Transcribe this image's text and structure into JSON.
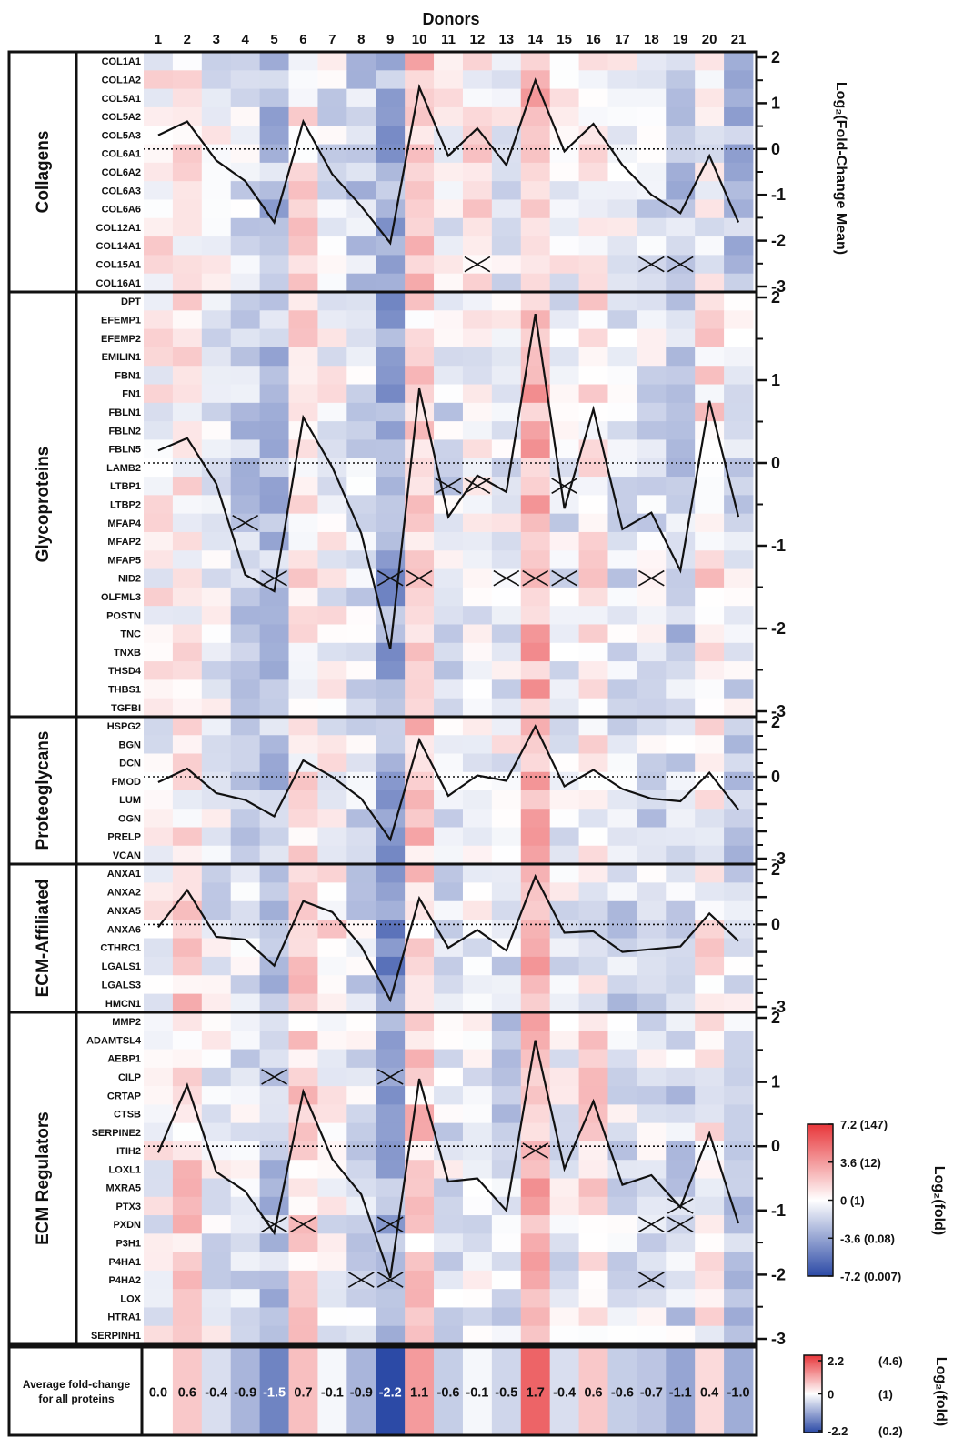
{
  "chart_data": {
    "type": "heatmap",
    "x_title": "Donors",
    "donors": [
      "1",
      "2",
      "3",
      "4",
      "5",
      "6",
      "7",
      "8",
      "9",
      "10",
      "11",
      "12",
      "13",
      "14",
      "15",
      "16",
      "17",
      "18",
      "19",
      "20",
      "21"
    ],
    "y_axis_title": "Log₂(Fold-Change Mean)",
    "heat_scale_label": "Log₂(fold)",
    "heat_scale": {
      "min": -7.2,
      "max": 7.2,
      "colors": {
        "low": "#2c4aa6",
        "mid": "#ffffff",
        "high": "#e8363a"
      }
    },
    "heat_legend": [
      {
        "text": "7.2 (147)",
        "value": 7.2
      },
      {
        "text": "3.6 (12)",
        "value": 3.6
      },
      {
        "text": "0 (1)",
        "value": 0
      },
      {
        "text": "-3.6 (0.08)",
        "value": -3.6
      },
      {
        "text": "-7.2 (0.007)",
        "value": -7.2
      }
    ],
    "categories": [
      {
        "name": "Collagens",
        "ylim": [
          -3,
          2
        ],
        "ticks": [
          "2",
          "1",
          "0",
          "-1",
          "-2",
          "-3"
        ],
        "proteins": [
          "COL1A1",
          "COL1A2",
          "COL5A1",
          "COL5A2",
          "COL5A3",
          "COL6A1",
          "COL6A2",
          "COL6A3",
          "COL6A6",
          "COL12A1",
          "COL14A1",
          "COL15A1",
          "COL16A1"
        ],
        "mean_line": [
          0.3,
          0.6,
          -0.25,
          -0.7,
          -1.6,
          0.6,
          -0.55,
          -1.25,
          -2.05,
          1.35,
          -0.15,
          0.45,
          -0.35,
          1.5,
          -0.05,
          0.55,
          -0.35,
          -1.0,
          -1.4,
          -0.15,
          -1.6
        ],
        "missing": [
          [
            11,
            11
          ],
          [
            11,
            17
          ],
          [
            11,
            18
          ]
        ]
      },
      {
        "name": "Glycoproteins",
        "ylim": [
          -3,
          2
        ],
        "ticks": [
          "2",
          "1",
          "0",
          "-1",
          "-2",
          "-3"
        ],
        "proteins": [
          "DPT",
          "EFEMP1",
          "EFEMP2",
          "EMILIN1",
          "FBN1",
          "FN1",
          "FBLN1",
          "FBLN2",
          "FBLN5",
          "LAMB2",
          "LTBP1",
          "LTBP2",
          "MFAP4",
          "MFAP2",
          "MFAP5",
          "NID2",
          "OLFML3",
          "POSTN",
          "TNC",
          "TNXB",
          "THSD4",
          "THBS1",
          "TGFBI"
        ],
        "mean_line": [
          0.15,
          0.3,
          -0.25,
          -1.35,
          -1.55,
          0.55,
          -0.05,
          -0.85,
          -2.25,
          0.9,
          -0.65,
          -0.15,
          -0.35,
          1.8,
          -0.55,
          0.65,
          -0.8,
          -0.6,
          -1.3,
          0.75,
          -0.65
        ],
        "missing": [
          [
            12,
            3
          ],
          [
            15,
            4
          ],
          [
            15,
            8
          ],
          [
            15,
            9
          ],
          [
            10,
            10
          ],
          [
            10,
            11
          ],
          [
            15,
            12
          ],
          [
            15,
            13
          ],
          [
            15,
            14
          ],
          [
            10,
            14
          ],
          [
            15,
            17
          ]
        ]
      },
      {
        "name": "Proteoglycans",
        "ylim": [
          -3,
          2
        ],
        "ticks": [
          "2",
          "0",
          "-3"
        ],
        "proteins": [
          "HSPG2",
          "BGN",
          "DCN",
          "FMOD",
          "LUM",
          "OGN",
          "PRELP",
          "VCAN"
        ],
        "mean_line": [
          -0.2,
          0.3,
          -0.6,
          -0.85,
          -1.45,
          0.6,
          0.0,
          -0.8,
          -2.3,
          1.35,
          -0.7,
          0.05,
          -0.15,
          1.85,
          -0.35,
          0.25,
          -0.45,
          -0.8,
          -0.9,
          0.15,
          -1.2
        ],
        "missing": []
      },
      {
        "name": "ECM-Affiliated",
        "ylim": [
          -3,
          2
        ],
        "ticks": [
          "2",
          "0",
          "-3"
        ],
        "proteins": [
          "ANXA1",
          "ANXA2",
          "ANXA5",
          "ANXA6",
          "CTHRC1",
          "LGALS1",
          "LGALS3",
          "HMCN1"
        ],
        "mean_line": [
          -0.1,
          1.25,
          -0.45,
          -0.55,
          -1.5,
          0.85,
          0.45,
          -0.8,
          -2.75,
          0.95,
          -0.85,
          -0.2,
          -0.95,
          1.75,
          -0.3,
          -0.25,
          -1.0,
          -0.9,
          -0.8,
          0.4,
          -0.6
        ],
        "missing": []
      },
      {
        "name": "ECM Regulators",
        "ylim": [
          -3,
          2
        ],
        "ticks": [
          "2",
          "1",
          "0",
          "-1",
          "-2",
          "-3"
        ],
        "proteins": [
          "MMP2",
          "ADAMTSL4",
          "AEBP1",
          "CILP",
          "CRTAP",
          "CTSB",
          "SERPINE2",
          "ITIH2",
          "LOXL1",
          "MXRA5",
          "PTX3",
          "PXDN",
          "P3H1",
          "P4HA1",
          "P4HA2",
          "LOX",
          "HTRA1",
          "SERPINH1"
        ],
        "mean_line": [
          -0.1,
          0.95,
          -0.4,
          -0.7,
          -1.35,
          0.85,
          -0.2,
          -0.75,
          -2.05,
          1.05,
          -0.55,
          -0.5,
          -1.0,
          1.65,
          -0.35,
          0.7,
          -0.6,
          -0.45,
          -0.95,
          0.2,
          -1.2
        ],
        "missing": [
          [
            3,
            4
          ],
          [
            3,
            8
          ],
          [
            11,
            4
          ],
          [
            11,
            5
          ],
          [
            11,
            8
          ],
          [
            14,
            7
          ],
          [
            14,
            8
          ],
          [
            7,
            13
          ],
          [
            11,
            17
          ],
          [
            11,
            18
          ],
          [
            10,
            18
          ],
          [
            14,
            17
          ]
        ]
      }
    ],
    "average": {
      "label": "Average fold-change for all proteins",
      "values": [
        0.0,
        0.6,
        -0.4,
        -0.9,
        -1.5,
        0.7,
        -0.1,
        -0.9,
        -2.2,
        1.1,
        -0.6,
        -0.1,
        -0.5,
        1.7,
        -0.4,
        0.6,
        -0.6,
        -0.7,
        -1.1,
        0.4,
        -1.0
      ],
      "labels": [
        "0.0",
        "0.6",
        "-0.4",
        "-0.9",
        "-1.5",
        "0.7",
        "-0.1",
        "-0.9",
        "-2.2",
        "1.1",
        "-0.6",
        "-0.1",
        "-0.5",
        "1.7",
        "-0.4",
        "0.6",
        "-0.6",
        "-0.7",
        "-1.1",
        "0.4",
        "-1.0"
      ],
      "scale_label": "Log₂(fold)",
      "scale": {
        "min": -2.2,
        "max": 2.2
      },
      "legend": [
        {
          "value": "2.2",
          "ratio": "(4.6)"
        },
        {
          "value": "0",
          "ratio": "(1)"
        },
        {
          "value": "-2.2",
          "ratio": "(0.2)"
        }
      ]
    }
  }
}
